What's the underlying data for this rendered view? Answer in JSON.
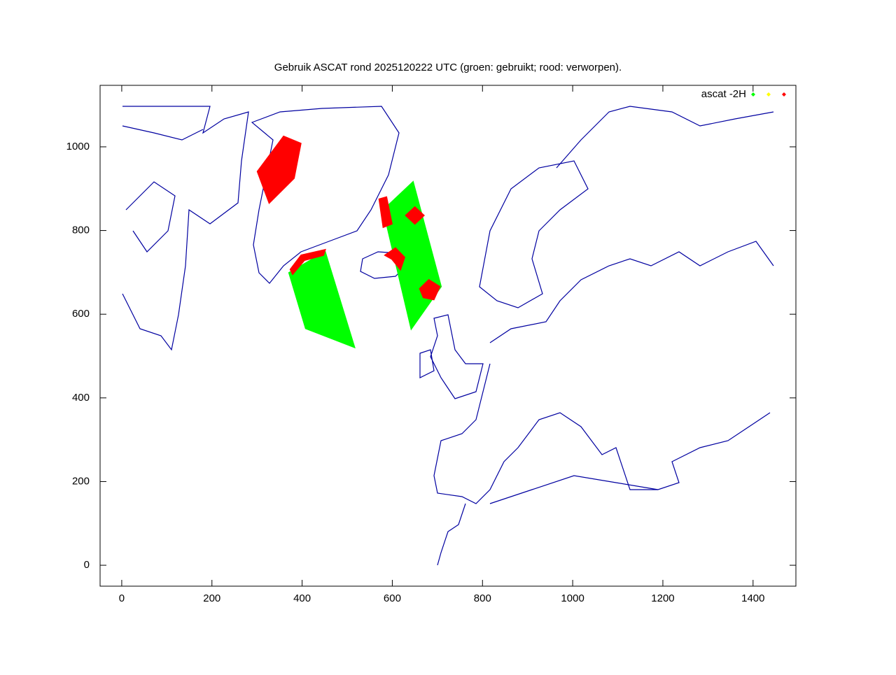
{
  "chart_data": {
    "type": "scatter",
    "title": "Gebruik ASCAT rond 2025120222 UTC (groen: gebruikt; rood: verworpen).",
    "xlim": [
      -48,
      1495
    ],
    "ylim": [
      -50,
      1147
    ],
    "xticks": [
      0,
      200,
      400,
      600,
      800,
      1000,
      1200,
      1400
    ],
    "yticks": [
      0,
      200,
      400,
      600,
      800,
      1000
    ],
    "series": [
      {
        "name": "ascat -2H",
        "color": "#00ff00",
        "x": [
          371,
          451,
          516,
          408,
          null,
          580,
          646,
          708,
          642,
          null,
          312,
          366,
          359,
          327
        ],
        "y": [
          699,
          749,
          521,
          566,
          null,
          849,
          916,
          666,
          565,
          null,
          923,
          975,
          925,
          900
        ]
      },
      {
        "color": "#ffff00",
        "x": [],
        "y": []
      },
      {
        "color": "#ff0000",
        "x": [
          301,
          359,
          397,
          382,
          327,
          null,
          571,
          587,
          599,
          580,
          null,
          630,
          650,
          670,
          650,
          null,
          584,
          607,
          627,
          618,
          599,
          null,
          661,
          681,
          705,
          692,
          669,
          null,
          374,
          398,
          451,
          447,
          405,
          379
        ],
        "y": [
          941,
          1025,
          1008,
          925,
          866,
          null,
          875,
          880,
          816,
          808,
          null,
          836,
          856,
          836,
          816,
          null,
          741,
          758,
          736,
          707,
          732,
          null,
          661,
          682,
          666,
          635,
          640,
          null,
          707,
          741,
          754,
          741,
          729,
          696
        ]
      }
    ]
  }
}
